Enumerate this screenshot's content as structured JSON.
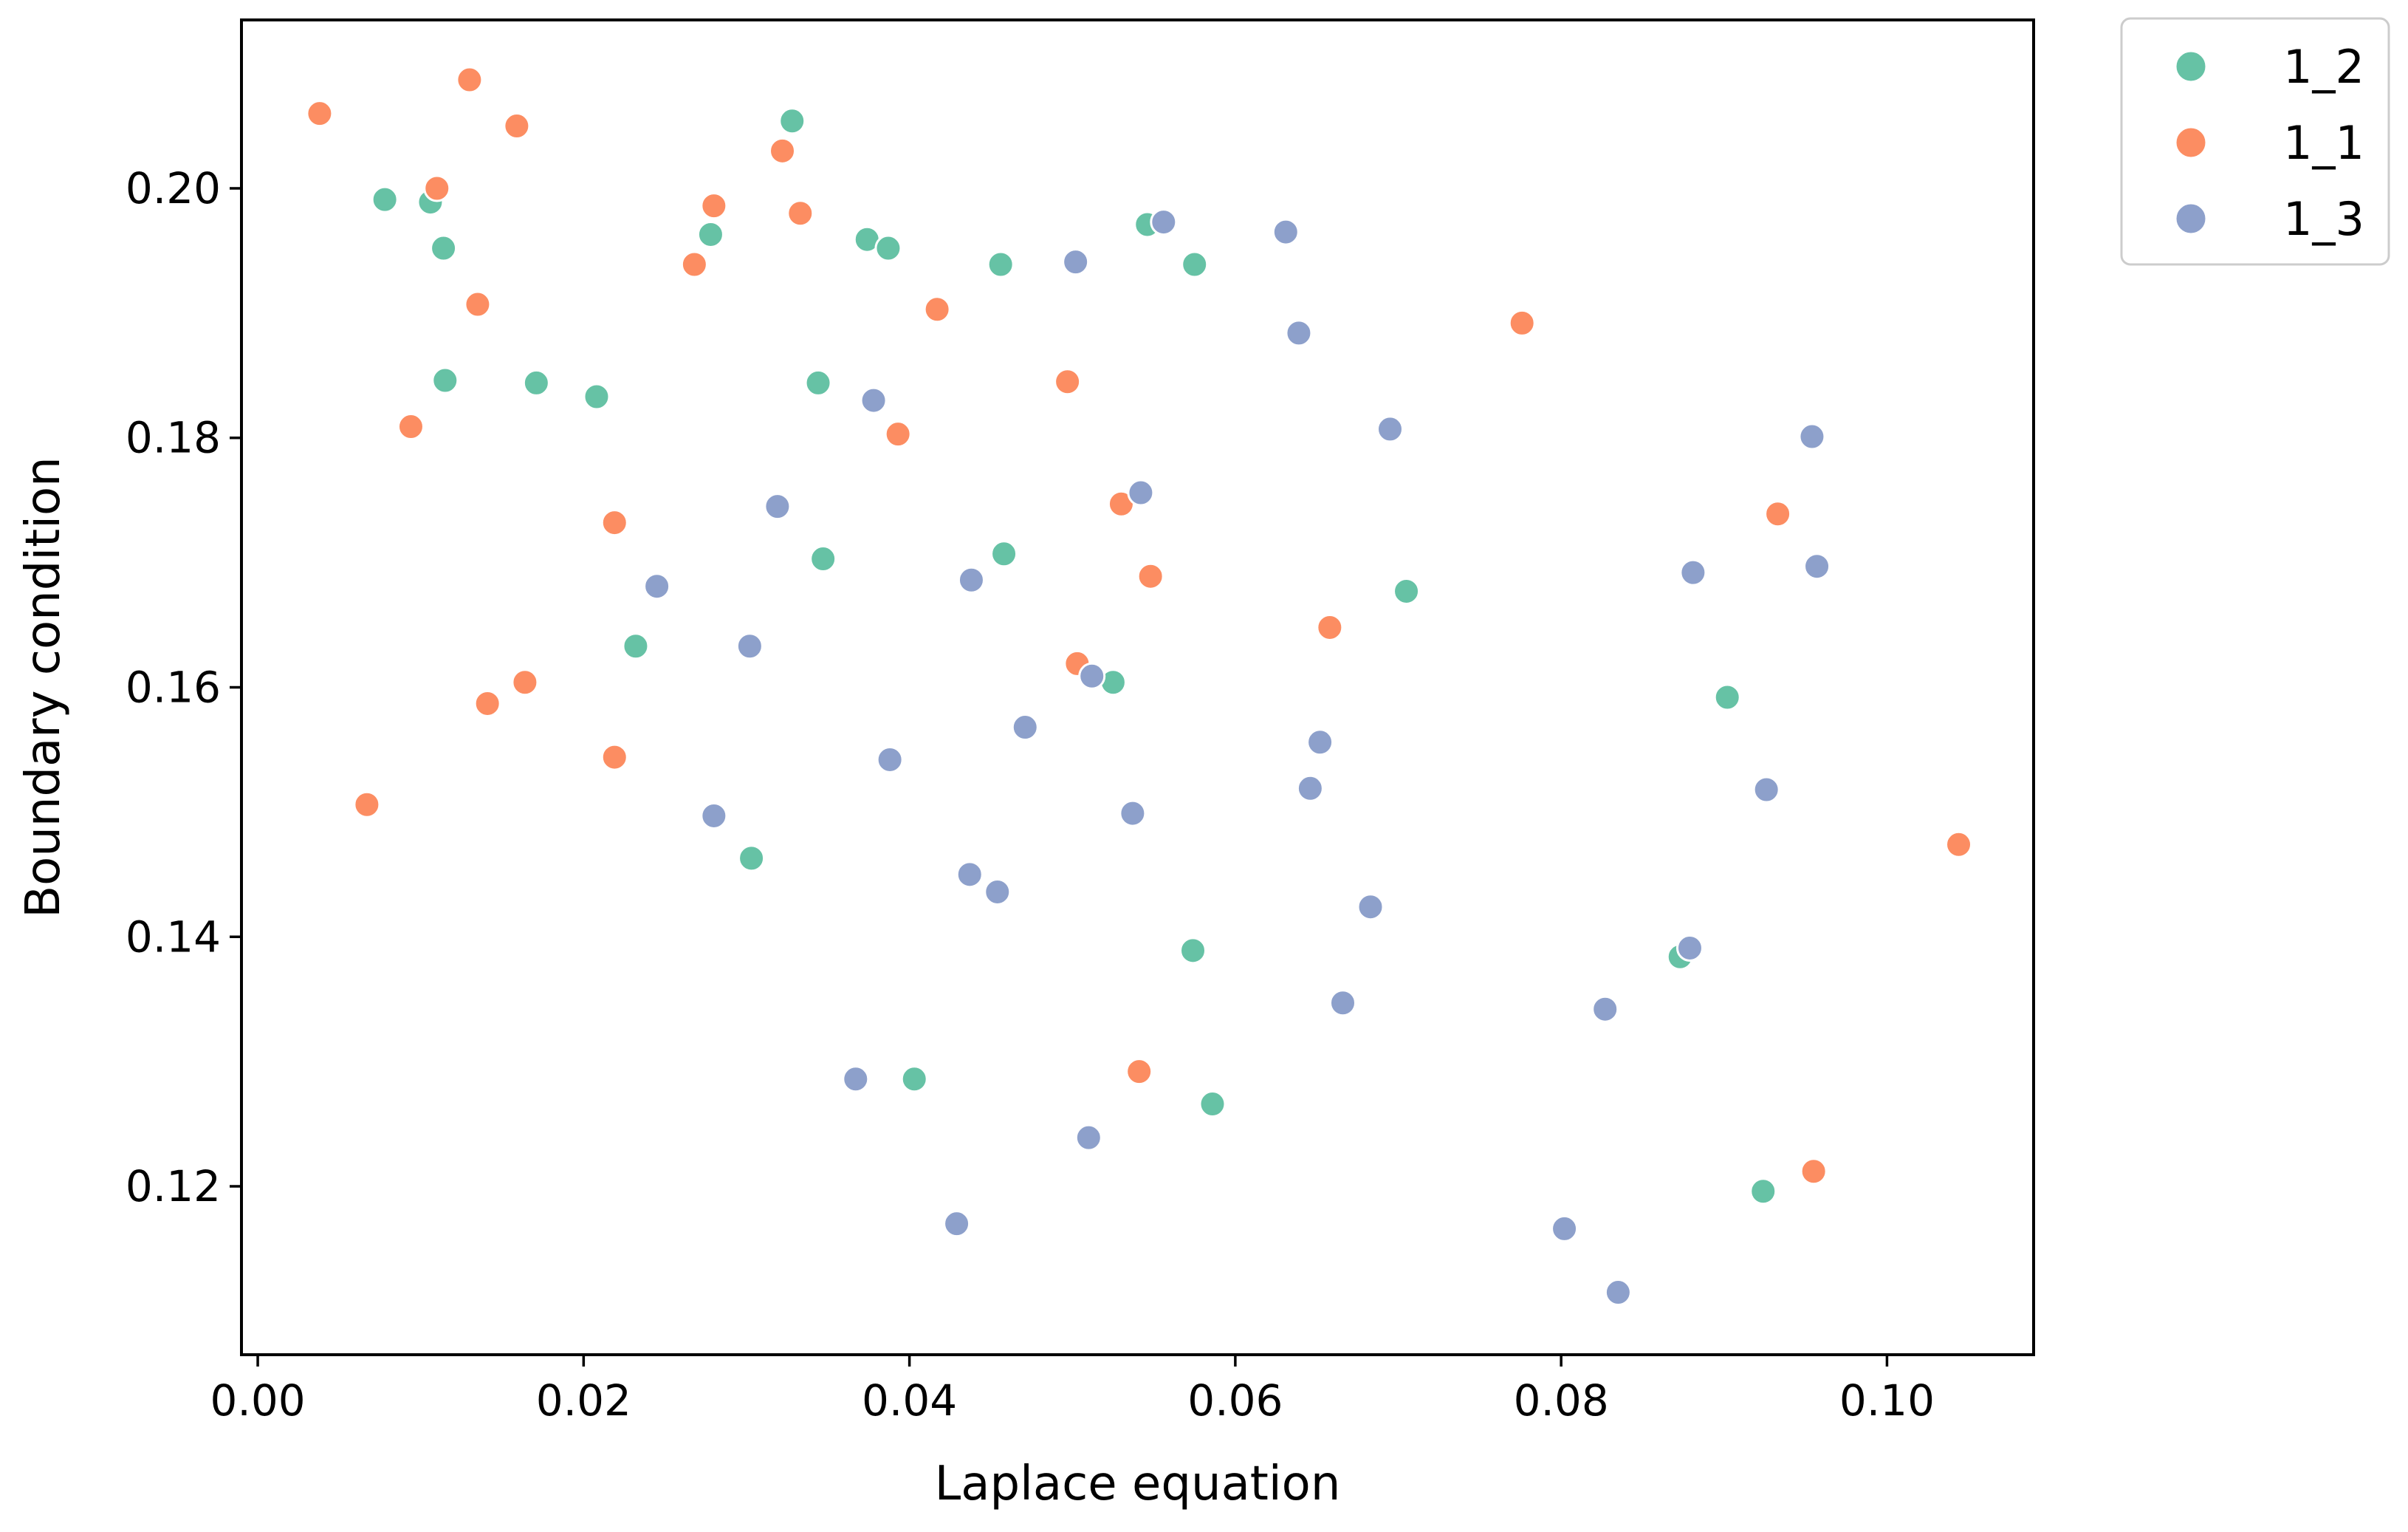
{
  "chart_data": {
    "type": "scatter",
    "xlabel": "Laplace equation",
    "ylabel": "Boundary condition",
    "xlim": [
      -0.001,
      0.109
    ],
    "ylim": [
      0.1065,
      0.2135
    ],
    "xticks": [
      0.0,
      0.02,
      0.04,
      0.06,
      0.08,
      0.1
    ],
    "xtick_labels": [
      "0.00",
      "0.02",
      "0.04",
      "0.06",
      "0.08",
      "0.10"
    ],
    "yticks": [
      0.12,
      0.14,
      0.16,
      0.18,
      0.2
    ],
    "ytick_labels": [
      "0.12",
      "0.14",
      "0.16",
      "0.18",
      "0.20"
    ],
    "grid": false,
    "legend": {
      "placement": "outside-top-right"
    },
    "series": [
      {
        "name": "1_2",
        "color": "#66c2a5",
        "points": [
          [
            0.0078,
            0.1991
          ],
          [
            0.0106,
            0.1989
          ],
          [
            0.0114,
            0.1952
          ],
          [
            0.0115,
            0.1846
          ],
          [
            0.0171,
            0.1844
          ],
          [
            0.0208,
            0.1833
          ],
          [
            0.0278,
            0.1963
          ],
          [
            0.0328,
            0.2054
          ],
          [
            0.0374,
            0.1959
          ],
          [
            0.0387,
            0.1952
          ],
          [
            0.0344,
            0.1844
          ],
          [
            0.0347,
            0.1703
          ],
          [
            0.0232,
            0.1633
          ],
          [
            0.0303,
            0.1463
          ],
          [
            0.0456,
            0.1939
          ],
          [
            0.0546,
            0.1971
          ],
          [
            0.0575,
            0.1939
          ],
          [
            0.0458,
            0.1707
          ],
          [
            0.0525,
            0.1604
          ],
          [
            0.0705,
            0.1677
          ],
          [
            0.0403,
            0.1286
          ],
          [
            0.0574,
            0.1389
          ],
          [
            0.0586,
            0.1266
          ],
          [
            0.0873,
            0.1384
          ],
          [
            0.0902,
            0.1592
          ],
          [
            0.0924,
            0.1196
          ]
        ]
      },
      {
        "name": "1_1",
        "color": "#fc8d62",
        "points": [
          [
            0.0038,
            0.206
          ],
          [
            0.013,
            0.2087
          ],
          [
            0.0159,
            0.205
          ],
          [
            0.011,
            0.2
          ],
          [
            0.0135,
            0.1907
          ],
          [
            0.0094,
            0.1809
          ],
          [
            0.028,
            0.1986
          ],
          [
            0.0268,
            0.1939
          ],
          [
            0.0322,
            0.203
          ],
          [
            0.0333,
            0.198
          ],
          [
            0.0417,
            0.1903
          ],
          [
            0.0393,
            0.1803
          ],
          [
            0.0497,
            0.1845
          ],
          [
            0.0219,
            0.1732
          ],
          [
            0.053,
            0.1747
          ],
          [
            0.0548,
            0.1689
          ],
          [
            0.0141,
            0.1587
          ],
          [
            0.0164,
            0.1604
          ],
          [
            0.0219,
            0.1544
          ],
          [
            0.0067,
            0.1506
          ],
          [
            0.0503,
            0.1619
          ],
          [
            0.0658,
            0.1648
          ],
          [
            0.0776,
            0.1892
          ],
          [
            0.0933,
            0.1739
          ],
          [
            0.0541,
            0.1292
          ],
          [
            0.0955,
            0.1212
          ],
          [
            0.1044,
            0.1474
          ]
        ]
      },
      {
        "name": "1_3",
        "color": "#8da0cb",
        "points": [
          [
            0.0556,
            0.1973
          ],
          [
            0.0502,
            0.1941
          ],
          [
            0.0631,
            0.1965
          ],
          [
            0.0639,
            0.1884
          ],
          [
            0.0378,
            0.183
          ],
          [
            0.0695,
            0.1807
          ],
          [
            0.0319,
            0.1745
          ],
          [
            0.0542,
            0.1756
          ],
          [
            0.0245,
            0.1681
          ],
          [
            0.0438,
            0.1686
          ],
          [
            0.0302,
            0.1633
          ],
          [
            0.0512,
            0.1609
          ],
          [
            0.0471,
            0.1568
          ],
          [
            0.0388,
            0.1542
          ],
          [
            0.028,
            0.1497
          ],
          [
            0.0537,
            0.1499
          ],
          [
            0.0652,
            0.1556
          ],
          [
            0.0646,
            0.1519
          ],
          [
            0.0437,
            0.145
          ],
          [
            0.0454,
            0.1436
          ],
          [
            0.0683,
            0.1424
          ],
          [
            0.0666,
            0.1347
          ],
          [
            0.0367,
            0.1286
          ],
          [
            0.051,
            0.1239
          ],
          [
            0.0429,
            0.117
          ],
          [
            0.0802,
            0.1166
          ],
          [
            0.0835,
            0.1115
          ],
          [
            0.0827,
            0.1342
          ],
          [
            0.0879,
            0.1391
          ],
          [
            0.0881,
            0.1692
          ],
          [
            0.0926,
            0.1518
          ],
          [
            0.0954,
            0.1801
          ],
          [
            0.0957,
            0.1697
          ]
        ]
      }
    ]
  }
}
